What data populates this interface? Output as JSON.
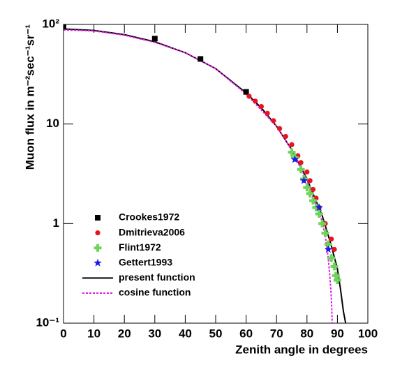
{
  "chart_data": {
    "type": "scatter",
    "x_label": "Zenith angle in degrees",
    "y_label": "Muon flux in m⁻²sec⁻¹sr⁻¹",
    "xlim": [
      0,
      100
    ],
    "xticks": [
      0,
      10,
      20,
      30,
      40,
      50,
      60,
      70,
      80,
      90,
      100
    ],
    "ylim": [
      0.1,
      100
    ],
    "yticks": [
      {
        "value": 0.1,
        "label": "10⁻¹"
      },
      1,
      10,
      {
        "value": 100,
        "label": "10²"
      }
    ],
    "log_y": true,
    "legend": "lower left",
    "series": [
      {
        "name": "Crookes1972",
        "color": "#000000",
        "marker": "square",
        "x": [
          0,
          30,
          45,
          60
        ],
        "values": [
          95,
          72,
          45,
          21
        ]
      },
      {
        "name": "Dmitrieva2006",
        "color": "#e8141b",
        "marker": "circle",
        "x": [
          61,
          63,
          65,
          67,
          69,
          71,
          73,
          75,
          77,
          78,
          80,
          81,
          82,
          83,
          84,
          86,
          88,
          89
        ],
        "values": [
          19,
          17,
          15,
          12.8,
          10.8,
          9,
          7.5,
          6.2,
          4.8,
          4.1,
          3.3,
          2.7,
          2.2,
          1.8,
          1.45,
          1.0,
          0.7,
          0.55
        ]
      },
      {
        "name": "Flint1972",
        "color": "#6dd35a",
        "marker": "cross",
        "x": [
          75,
          76,
          78,
          79,
          80,
          81,
          82,
          83,
          84,
          85,
          86,
          87,
          88,
          89,
          89.5,
          90
        ],
        "values": [
          5.2,
          4.6,
          3.5,
          2.8,
          2.3,
          2.0,
          1.7,
          1.45,
          1.25,
          1.0,
          0.8,
          0.62,
          0.45,
          0.37,
          0.3,
          0.27
        ]
      },
      {
        "name": "Gettert1993",
        "color": "#1a1ae6",
        "marker": "star",
        "x": [
          76,
          79,
          84,
          87
        ],
        "values": [
          4.4,
          2.7,
          1.45,
          0.55
        ]
      },
      {
        "name": "present function",
        "color": "#000000",
        "marker": "line",
        "dash": "solid",
        "x": [
          0,
          10,
          20,
          30,
          40,
          50,
          60,
          65,
          70,
          75,
          80,
          85,
          88,
          90,
          91,
          92,
          92.7
        ],
        "values": [
          90,
          87,
          79,
          67,
          52,
          36,
          20.5,
          14.5,
          9.5,
          5.5,
          2.8,
          1.2,
          0.6,
          0.35,
          0.22,
          0.13,
          0.1
        ]
      },
      {
        "name": "cosine function",
        "color": "#e619e6",
        "marker": "line",
        "dash": "dotted",
        "x": [
          0,
          10,
          20,
          30,
          40,
          50,
          60,
          70,
          75,
          80,
          85,
          86,
          87,
          87.5,
          88,
          88.3
        ],
        "values": [
          88,
          86,
          78,
          66,
          52,
          36,
          20,
          9.5,
          5.5,
          2.7,
          1.05,
          0.75,
          0.45,
          0.3,
          0.18,
          0.1
        ]
      }
    ]
  }
}
